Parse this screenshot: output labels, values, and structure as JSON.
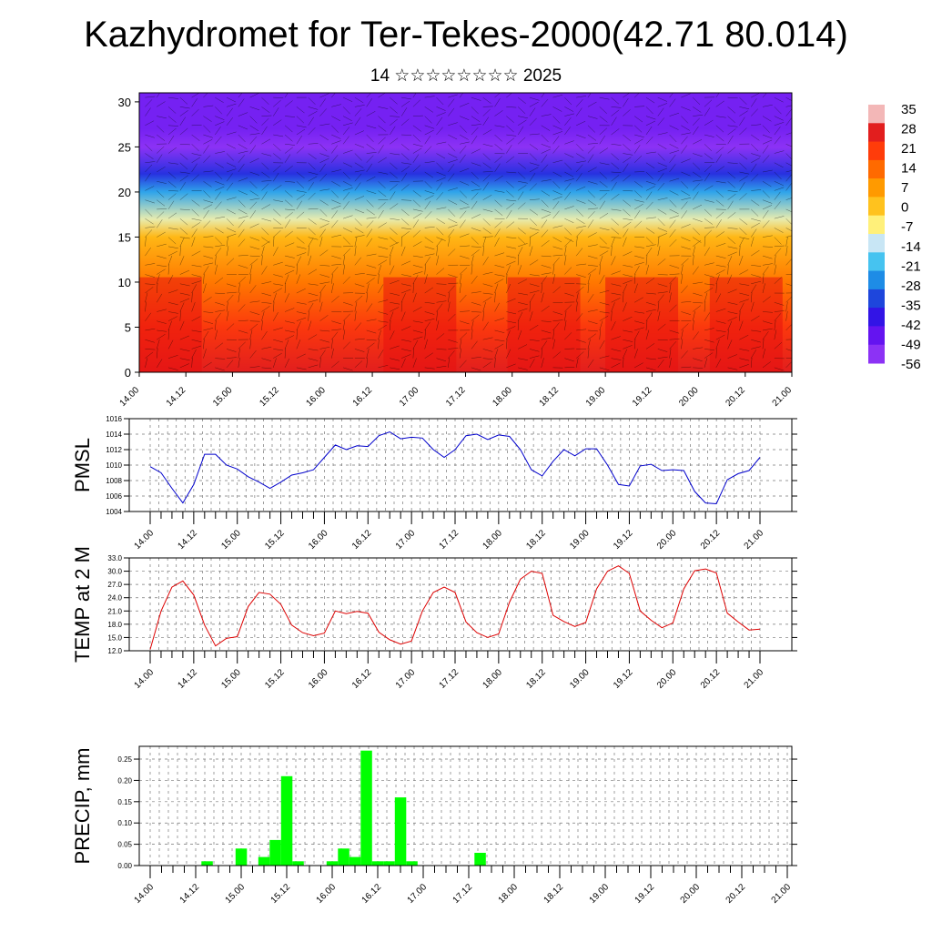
{
  "title": "Kazhydromet for Ter-Tekes-2000(42.71 80.014)",
  "subtitle": "14 ☆☆☆☆☆☆☆☆ 2025",
  "time_labels": [
    "14.00",
    "14.12",
    "15.00",
    "15.12",
    "16.00",
    "16.12",
    "17.00",
    "17.12",
    "18.00",
    "18.12",
    "19.00",
    "19.12",
    "20.00",
    "20.12",
    "21.00"
  ],
  "chart_data": [
    {
      "type": "heatmap",
      "x": "time_labels",
      "ylim": [
        0,
        31
      ],
      "yticks": [
        0,
        5,
        10,
        15,
        20,
        25,
        30
      ],
      "colorbar": {
        "labels": [
          "35",
          "28",
          "21",
          "14",
          "7",
          "0",
          "-7",
          "-14",
          "-21",
          "-28",
          "-35",
          "-42",
          "-49",
          "-56"
        ],
        "colors": [
          "#f3b7b7",
          "#e21e1e",
          "#ff3c0a",
          "#ff6a00",
          "#ff9a00",
          "#ffc21e",
          "#fff07a",
          "#c8e6f5",
          "#46c3f0",
          "#1e8ce6",
          "#1e46dc",
          "#3214e6",
          "#6414f0",
          "#8c32f5"
        ]
      },
      "profile_levels": [
        0,
        5,
        10,
        15,
        17,
        20,
        22,
        25,
        27,
        31
      ],
      "profile_temps": [
        28,
        22,
        12,
        2,
        -10,
        -25,
        -38,
        -56,
        -52,
        -52
      ]
    },
    {
      "type": "line",
      "ylabel": "PMSL",
      "ylim": [
        1004,
        1016
      ],
      "yticks": [
        "1004",
        "1006",
        "1008",
        "1010",
        "1012",
        "1014",
        "1016"
      ],
      "color": "#0000cc",
      "values": [
        1009.8,
        1009.0,
        1007.0,
        1005.1,
        1007.5,
        1011.4,
        1011.4,
        1010.0,
        1009.5,
        1008.5,
        1007.8,
        1007.0,
        1007.8,
        1008.7,
        1009.0,
        1009.4,
        1011.0,
        1012.6,
        1012.0,
        1012.5,
        1012.4,
        1013.8,
        1014.3,
        1013.4,
        1013.6,
        1013.5,
        1012.0,
        1011.0,
        1012.0,
        1013.8,
        1014.0,
        1013.3,
        1013.9,
        1013.7,
        1012.0,
        1009.4,
        1008.6,
        1010.5,
        1012.0,
        1011.2,
        1012.1,
        1012.1,
        1010.0,
        1007.5,
        1007.3,
        1009.9,
        1010.1,
        1009.3,
        1009.4,
        1009.3,
        1006.6,
        1005.1,
        1005.0,
        1008.1,
        1008.9,
        1009.3,
        1011.0
      ]
    },
    {
      "type": "line",
      "ylabel": "TEMP at 2 M",
      "ylim": [
        12,
        33
      ],
      "yticks": [
        "12.0",
        "15.0",
        "18.0",
        "21.0",
        "24.0",
        "27.0",
        "30.0",
        "33.0"
      ],
      "color": "#dd0000",
      "values": [
        12.3,
        21.0,
        26.4,
        27.8,
        24.6,
        17.8,
        13.1,
        14.8,
        15.2,
        22.0,
        25.2,
        24.8,
        22.5,
        17.8,
        16.1,
        15.4,
        16.0,
        21.0,
        20.4,
        20.9,
        20.5,
        16.2,
        14.5,
        13.5,
        14.2,
        21.0,
        25.2,
        26.4,
        25.2,
        18.5,
        16.1,
        15.0,
        15.8,
        23.0,
        28.2,
        30.0,
        29.5,
        20.0,
        18.6,
        17.5,
        18.4,
        26.0,
        30.0,
        31.2,
        29.5,
        21.0,
        18.9,
        17.2,
        18.3,
        26.0,
        30.1,
        30.5,
        29.6,
        20.5,
        18.5,
        16.7,
        16.9
      ]
    },
    {
      "type": "bar",
      "ylabel": "PRECIP, mm",
      "ylim": [
        0,
        0.28
      ],
      "yticks": [
        "0.00",
        "0.05",
        "0.10",
        "0.15",
        "0.20",
        "0.25"
      ],
      "color": "#00ff00",
      "values": [
        0,
        0,
        0,
        0,
        0,
        0.01,
        0,
        0,
        0.04,
        0,
        0.02,
        0.06,
        0.21,
        0.01,
        0,
        0,
        0.01,
        0.04,
        0.02,
        0.27,
        0.01,
        0.01,
        0.16,
        0.01,
        0,
        0,
        0,
        0,
        0,
        0.03,
        0,
        0,
        0,
        0,
        0,
        0,
        0,
        0,
        0,
        0,
        0,
        0,
        0,
        0,
        0,
        0,
        0,
        0,
        0,
        0,
        0,
        0,
        0,
        0,
        0,
        0,
        0
      ]
    }
  ]
}
